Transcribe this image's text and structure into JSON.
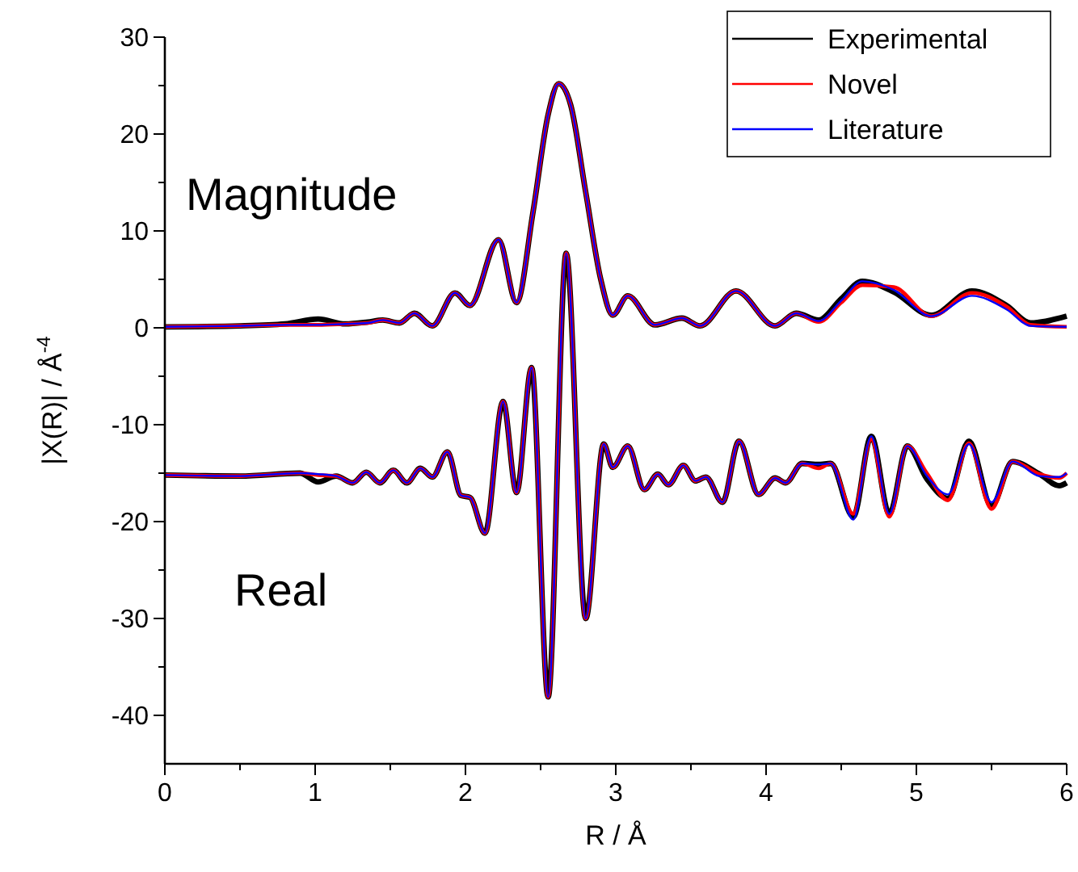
{
  "chart_data": {
    "type": "line",
    "xlabel": "R / Å",
    "ylabel": "|X(R)| / Å$^{-4}$",
    "xlim": [
      0,
      6
    ],
    "xticks": [
      0,
      {
        "value": 0.5,
        "label": null
      },
      1,
      {
        "value": 1.5,
        "label": null
      },
      2,
      {
        "value": 2.5,
        "label": null
      },
      3,
      {
        "value": 3.5,
        "label": null
      },
      4,
      {
        "value": 4.5,
        "label": null
      },
      5,
      {
        "value": 5.5,
        "label": null
      },
      6
    ],
    "ylim": [
      -45,
      30
    ],
    "yticks": [
      30,
      {
        "value": 25,
        "label": null
      },
      20,
      {
        "value": 15,
        "label": null
      },
      10,
      {
        "value": 5,
        "label": null
      },
      0,
      {
        "value": -5,
        "label": null
      },
      -10,
      {
        "value": -15,
        "label": null
      },
      -20,
      {
        "value": -25,
        "label": null
      },
      -30,
      {
        "value": -35,
        "label": null
      },
      -40
    ],
    "grid": false,
    "legend": "top right",
    "marker": "none",
    "line_style": "solid",
    "annotations": [
      "Magnitude",
      "Real"
    ],
    "series": [
      {
        "name": "Experimental",
        "color": "#000000",
        "x": [
          0,
          0.5,
          0.8,
          1.02,
          1.2,
          1.35,
          1.45,
          1.56,
          1.66,
          1.78,
          1.93,
          2.03,
          2.22,
          2.34,
          2.45,
          2.55,
          2.62,
          2.7,
          2.8,
          2.9,
          2.98,
          3.08,
          3.26,
          3.44,
          3.56,
          3.8,
          4.06,
          4.2,
          4.35,
          4.5,
          4.64,
          4.85,
          5.1,
          5.37,
          5.6,
          5.76,
          6.0
        ],
        "values": [
          0.1,
          0.2,
          0.4,
          0.9,
          0.4,
          0.6,
          0.8,
          0.5,
          1.5,
          0.2,
          3.6,
          2.3,
          9.1,
          2.6,
          12,
          22,
          25.2,
          23,
          14,
          5,
          1.3,
          3.3,
          0.3,
          1.0,
          0.2,
          3.8,
          0.2,
          1.5,
          0.8,
          3.0,
          4.8,
          3.7,
          1.3,
          3.8,
          2.3,
          0.5,
          1.2
        ]
      },
      {
        "name": "Novel",
        "color": "#ff0000",
        "x": [
          0,
          0.5,
          0.8,
          1.02,
          1.2,
          1.35,
          1.45,
          1.56,
          1.66,
          1.78,
          1.93,
          2.03,
          2.22,
          2.34,
          2.45,
          2.55,
          2.62,
          2.7,
          2.8,
          2.9,
          2.98,
          3.08,
          3.26,
          3.44,
          3.56,
          3.8,
          4.06,
          4.2,
          4.35,
          4.5,
          4.64,
          4.85,
          5.1,
          5.37,
          5.6,
          5.76,
          6.0
        ],
        "values": [
          0.1,
          0.2,
          0.3,
          0.3,
          0.4,
          0.5,
          0.8,
          0.5,
          1.5,
          0.2,
          3.6,
          2.3,
          9.1,
          2.6,
          12,
          22,
          25.2,
          23,
          14,
          5,
          1.3,
          3.3,
          0.3,
          1.0,
          0.2,
          3.8,
          0.2,
          1.5,
          0.6,
          2.6,
          4.4,
          4.2,
          1.2,
          3.6,
          2.2,
          0.3,
          0.1
        ]
      },
      {
        "name": "Literature",
        "color": "#0000ff",
        "x": [
          0,
          0.5,
          0.8,
          1.02,
          1.2,
          1.35,
          1.45,
          1.56,
          1.66,
          1.78,
          1.93,
          2.03,
          2.22,
          2.34,
          2.45,
          2.55,
          2.62,
          2.7,
          2.8,
          2.9,
          2.98,
          3.08,
          3.26,
          3.44,
          3.56,
          3.8,
          4.06,
          4.2,
          4.35,
          4.5,
          4.64,
          4.85,
          5.1,
          5.37,
          5.6,
          5.76,
          6.0
        ],
        "values": [
          0.1,
          0.2,
          0.3,
          0.3,
          0.4,
          0.5,
          0.8,
          0.5,
          1.5,
          0.2,
          3.6,
          2.3,
          9.1,
          2.6,
          12,
          22,
          25.2,
          23,
          14,
          5,
          1.3,
          3.3,
          0.3,
          1.0,
          0.2,
          3.8,
          0.2,
          1.5,
          0.7,
          2.8,
          4.8,
          3.9,
          1.2,
          3.3,
          1.9,
          0.2,
          0.1
        ]
      },
      {
        "color": "#000000",
        "x": [
          0,
          0.5,
          0.9,
          1.02,
          1.14,
          1.25,
          1.34,
          1.43,
          1.52,
          1.61,
          1.7,
          1.78,
          1.88,
          1.97,
          2.03,
          2.13,
          2.25,
          2.34,
          2.44,
          2.55,
          2.67,
          2.8,
          2.92,
          2.98,
          3.08,
          3.19,
          3.28,
          3.35,
          3.45,
          3.53,
          3.6,
          3.71,
          3.82,
          3.95,
          4.06,
          4.13,
          4.24,
          4.35,
          4.43,
          4.58,
          4.7,
          4.82,
          4.94,
          5.07,
          5.21,
          5.35,
          5.5,
          5.64,
          5.82,
          5.95,
          6.0
        ],
        "values": [
          -15.2,
          -15.3,
          -15.0,
          -15.9,
          -15.3,
          -16,
          -14.9,
          -16,
          -14.7,
          -16,
          -14.5,
          -15.4,
          -12.8,
          -17.3,
          -17.5,
          -21.2,
          -7.6,
          -17,
          -4.1,
          -38.1,
          7.7,
          -30,
          -12,
          -14.4,
          -12.2,
          -16.7,
          -15.1,
          -16.2,
          -14.2,
          -15.8,
          -15.4,
          -18,
          -11.7,
          -17.2,
          -15.5,
          -16,
          -14,
          -14.1,
          -14,
          -19.5,
          -11.2,
          -19.2,
          -12.2,
          -15.6,
          -17.6,
          -11.7,
          -18.4,
          -13.8,
          -15.1,
          -16.3,
          -16
        ]
      },
      {
        "color": "#ff0000",
        "x": [
          0,
          0.5,
          0.9,
          1.02,
          1.14,
          1.25,
          1.34,
          1.43,
          1.52,
          1.61,
          1.7,
          1.78,
          1.88,
          1.97,
          2.03,
          2.13,
          2.25,
          2.34,
          2.44,
          2.55,
          2.67,
          2.8,
          2.92,
          2.98,
          3.08,
          3.19,
          3.28,
          3.35,
          3.45,
          3.53,
          3.6,
          3.71,
          3.82,
          3.95,
          4.06,
          4.13,
          4.24,
          4.35,
          4.43,
          4.58,
          4.7,
          4.82,
          4.94,
          5.07,
          5.21,
          5.35,
          5.5,
          5.64,
          5.82,
          5.95,
          6.0
        ],
        "values": [
          -15.2,
          -15.3,
          -15.0,
          -15.2,
          -15.3,
          -16,
          -14.9,
          -16,
          -14.7,
          -16,
          -14.5,
          -15.4,
          -12.8,
          -17.3,
          -17.5,
          -21.2,
          -7.6,
          -17,
          -4.1,
          -38.1,
          7.7,
          -30,
          -12,
          -14.4,
          -12.2,
          -16.7,
          -15.1,
          -16.2,
          -14.2,
          -15.8,
          -15.4,
          -18,
          -11.7,
          -17.2,
          -15.5,
          -16,
          -14,
          -14.5,
          -14,
          -19.2,
          -11.5,
          -19.5,
          -12.2,
          -15.0,
          -17.8,
          -11.9,
          -18.7,
          -13.8,
          -15.1,
          -15.5,
          -15
        ]
      },
      {
        "color": "#0000ff",
        "x": [
          0,
          0.5,
          0.9,
          1.02,
          1.14,
          1.25,
          1.34,
          1.43,
          1.52,
          1.61,
          1.7,
          1.78,
          1.88,
          1.97,
          2.03,
          2.13,
          2.25,
          2.34,
          2.44,
          2.55,
          2.67,
          2.8,
          2.92,
          2.98,
          3.08,
          3.19,
          3.28,
          3.35,
          3.45,
          3.53,
          3.6,
          3.71,
          3.82,
          3.95,
          4.06,
          4.13,
          4.24,
          4.35,
          4.43,
          4.58,
          4.7,
          4.82,
          4.94,
          5.07,
          5.21,
          5.35,
          5.5,
          5.64,
          5.82,
          5.95,
          6.0
        ],
        "values": [
          -15.2,
          -15.3,
          -15.0,
          -15.1,
          -15.3,
          -16,
          -14.9,
          -16,
          -14.7,
          -16,
          -14.5,
          -15.4,
          -12.8,
          -17.3,
          -17.5,
          -21.2,
          -7.6,
          -17,
          -4.1,
          -38.1,
          7.7,
          -30,
          -12,
          -14.4,
          -12.2,
          -16.7,
          -15.1,
          -16.2,
          -14.2,
          -15.8,
          -15.4,
          -18,
          -11.7,
          -17.2,
          -15.5,
          -16,
          -14,
          -14.1,
          -14,
          -19.8,
          -11.2,
          -19.2,
          -12.2,
          -15.3,
          -17.2,
          -12.0,
          -18.0,
          -13.8,
          -15.3,
          -15.4,
          -15
        ]
      }
    ]
  }
}
